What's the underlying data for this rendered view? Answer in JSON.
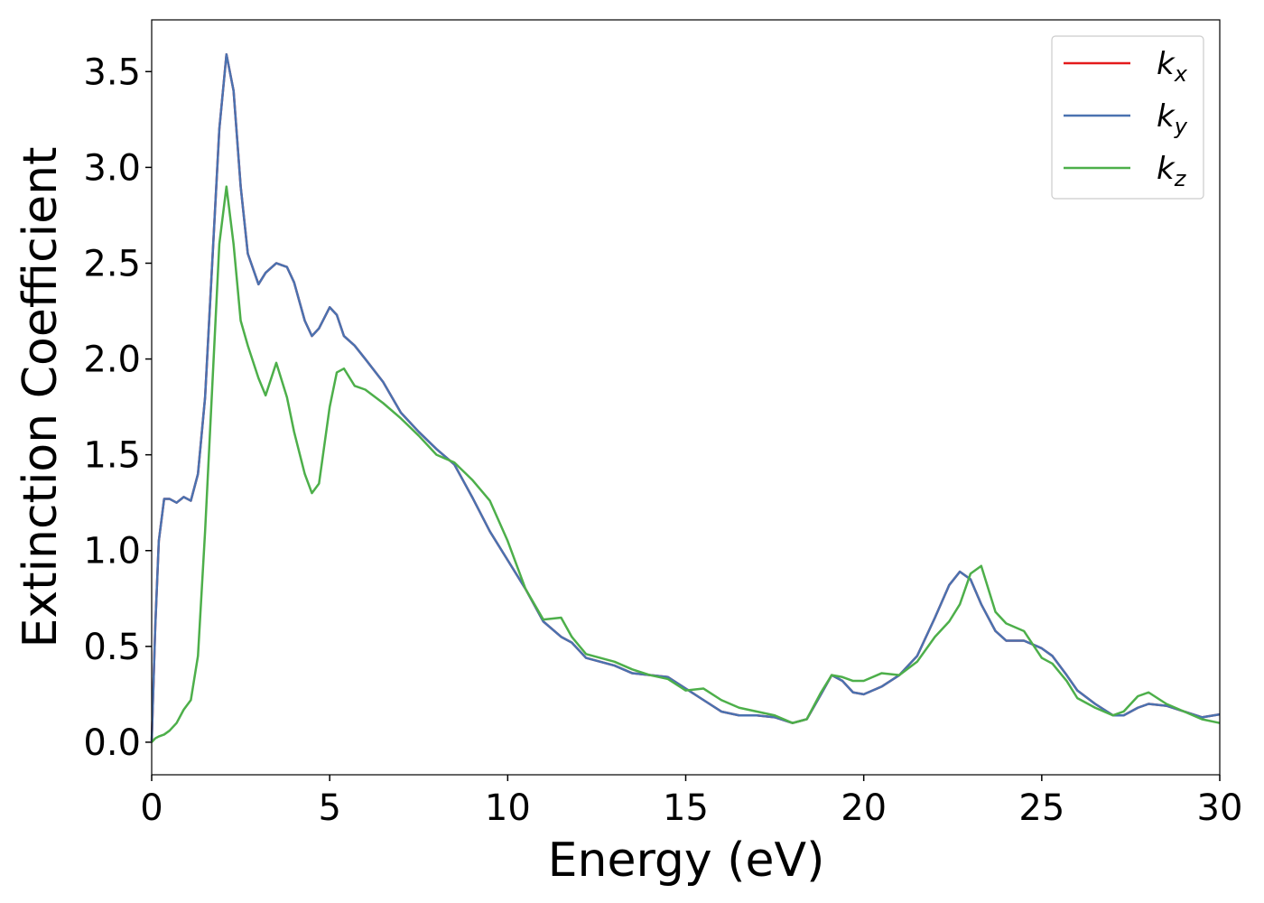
{
  "chart_data": {
    "type": "line",
    "xlabel": "Energy (eV)",
    "ylabel": "Extinction Coefficient",
    "x": [
      0,
      0.1,
      0.2,
      0.35,
      0.5,
      0.7,
      0.9,
      1.1,
      1.3,
      1.5,
      1.7,
      1.9,
      2.1,
      2.3,
      2.5,
      2.7,
      3.0,
      3.2,
      3.5,
      3.8,
      4.0,
      4.3,
      4.5,
      4.7,
      5.0,
      5.2,
      5.4,
      5.7,
      6.0,
      6.5,
      7,
      7.5,
      8,
      8.5,
      9,
      9.5,
      10,
      10.5,
      11,
      11.5,
      11.8,
      12.2,
      13,
      13.5,
      14,
      14.5,
      15,
      15.5,
      16,
      16.5,
      17,
      17.5,
      18,
      18.4,
      18.8,
      19.1,
      19.4,
      19.7,
      20,
      20.5,
      21,
      21.5,
      22,
      22.4,
      22.7,
      23,
      23.3,
      23.7,
      24,
      24.5,
      25,
      25.3,
      25.7,
      26,
      26.5,
      27,
      27.3,
      27.7,
      28,
      28.5,
      29,
      29.5,
      30
    ],
    "series": [
      {
        "name": "kx",
        "color": "#e41a1c",
        "values": [
          0.0,
          0.6,
          1.05,
          1.27,
          1.27,
          1.25,
          1.28,
          1.26,
          1.4,
          1.8,
          2.5,
          3.2,
          3.59,
          3.4,
          2.9,
          2.55,
          2.39,
          2.45,
          2.5,
          2.48,
          2.4,
          2.2,
          2.12,
          2.16,
          2.27,
          2.23,
          2.12,
          2.07,
          2.0,
          1.88,
          1.72,
          1.62,
          1.53,
          1.45,
          1.28,
          1.1,
          0.95,
          0.8,
          0.63,
          0.55,
          0.52,
          0.44,
          0.4,
          0.36,
          0.35,
          0.34,
          0.28,
          0.22,
          0.16,
          0.14,
          0.14,
          0.13,
          0.1,
          0.12,
          0.25,
          0.35,
          0.32,
          0.26,
          0.25,
          0.29,
          0.35,
          0.45,
          0.65,
          0.82,
          0.89,
          0.85,
          0.72,
          0.58,
          0.53,
          0.53,
          0.49,
          0.45,
          0.35,
          0.27,
          0.2,
          0.14,
          0.14,
          0.18,
          0.2,
          0.19,
          0.16,
          0.13,
          0.145
        ]
      },
      {
        "name": "ky",
        "color": "#4a72b0",
        "values": [
          0.0,
          0.6,
          1.05,
          1.27,
          1.27,
          1.25,
          1.28,
          1.26,
          1.4,
          1.8,
          2.5,
          3.2,
          3.59,
          3.4,
          2.9,
          2.55,
          2.39,
          2.45,
          2.5,
          2.48,
          2.4,
          2.2,
          2.12,
          2.16,
          2.27,
          2.23,
          2.12,
          2.07,
          2.0,
          1.88,
          1.72,
          1.62,
          1.53,
          1.45,
          1.28,
          1.1,
          0.95,
          0.8,
          0.63,
          0.55,
          0.52,
          0.44,
          0.4,
          0.36,
          0.35,
          0.34,
          0.28,
          0.22,
          0.16,
          0.14,
          0.14,
          0.13,
          0.1,
          0.12,
          0.25,
          0.35,
          0.32,
          0.26,
          0.25,
          0.29,
          0.35,
          0.45,
          0.65,
          0.82,
          0.89,
          0.85,
          0.72,
          0.58,
          0.53,
          0.53,
          0.49,
          0.45,
          0.35,
          0.27,
          0.2,
          0.14,
          0.14,
          0.18,
          0.2,
          0.19,
          0.16,
          0.13,
          0.145
        ]
      },
      {
        "name": "kz",
        "color": "#4daf4a",
        "values": [
          0.0,
          0.02,
          0.03,
          0.04,
          0.06,
          0.1,
          0.17,
          0.22,
          0.45,
          1.1,
          1.85,
          2.6,
          2.9,
          2.6,
          2.2,
          2.07,
          1.9,
          1.81,
          1.98,
          1.8,
          1.62,
          1.4,
          1.3,
          1.35,
          1.75,
          1.93,
          1.95,
          1.86,
          1.84,
          1.77,
          1.69,
          1.6,
          1.5,
          1.46,
          1.37,
          1.26,
          1.05,
          0.8,
          0.64,
          0.65,
          0.55,
          0.46,
          0.42,
          0.38,
          0.35,
          0.33,
          0.27,
          0.28,
          0.22,
          0.18,
          0.16,
          0.14,
          0.1,
          0.12,
          0.26,
          0.35,
          0.34,
          0.32,
          0.32,
          0.36,
          0.35,
          0.42,
          0.55,
          0.63,
          0.72,
          0.88,
          0.92,
          0.68,
          0.62,
          0.58,
          0.44,
          0.41,
          0.32,
          0.23,
          0.18,
          0.14,
          0.16,
          0.24,
          0.26,
          0.2,
          0.16,
          0.12,
          0.1
        ]
      }
    ],
    "xlim": [
      0,
      30
    ],
    "xticks": [
      0,
      5,
      10,
      15,
      20,
      25,
      30
    ],
    "ylim": [
      -0.17,
      3.77
    ],
    "yticks": [
      {
        "value": 0,
        "label": "0.0"
      },
      0.5,
      {
        "value": 1,
        "label": "1.0"
      },
      1.5,
      {
        "value": 2,
        "label": "2.0"
      },
      2.5,
      {
        "value": 3,
        "label": "3.0"
      },
      3.5
    ],
    "legend": "upper right"
  }
}
